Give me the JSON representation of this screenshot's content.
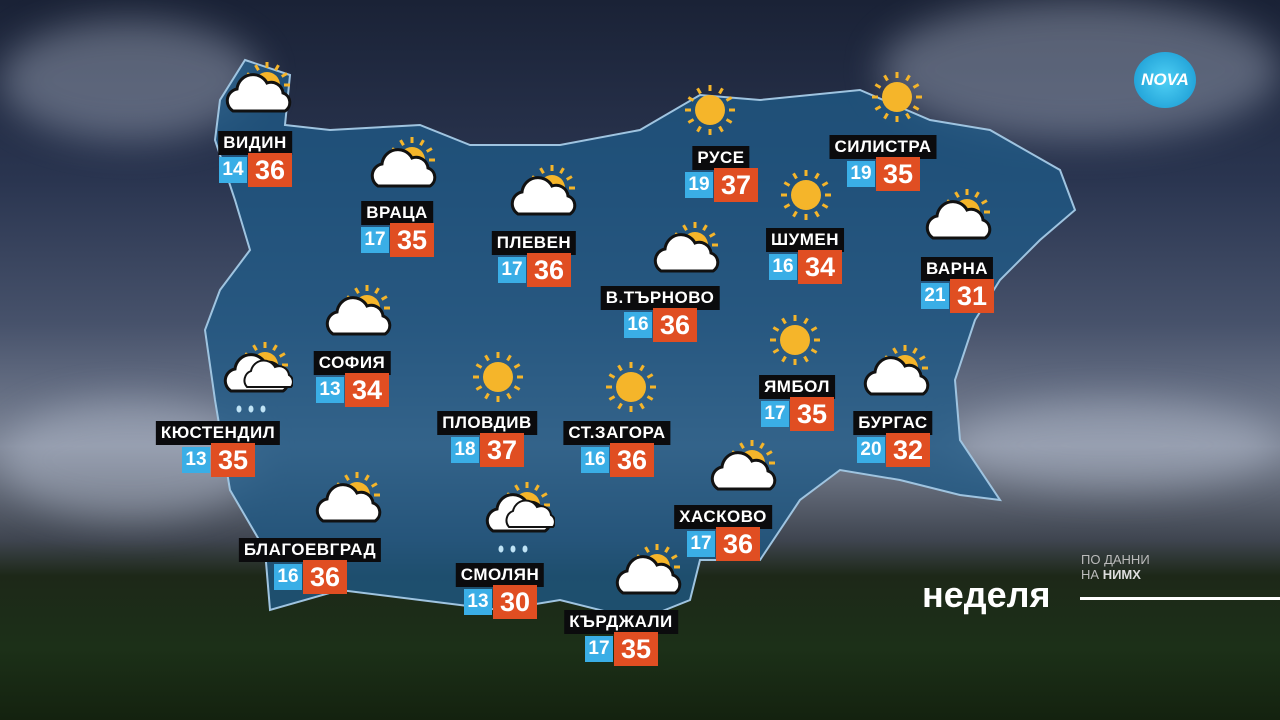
{
  "logo": "NOVA",
  "day": "неделя",
  "source": {
    "line1": "ПО ДАННИ",
    "line2_prefix": "НА",
    "line2_bold": "НИМХ"
  },
  "colors": {
    "min_temp_bg": "#3aaee6",
    "max_temp_bg": "#e04e22",
    "label_bg": "#0b0b0d",
    "map_fill": "#1f5a86"
  },
  "cities": [
    {
      "name": "ВИДИН",
      "min": "14",
      "max": "36",
      "icon": "partly-cloudy-icon"
    },
    {
      "name": "ВРАЦА",
      "min": "17",
      "max": "35",
      "icon": "partly-cloudy-icon"
    },
    {
      "name": "ПЛЕВЕН",
      "min": "17",
      "max": "36",
      "icon": "partly-cloudy-icon"
    },
    {
      "name": "РУСЕ",
      "min": "19",
      "max": "37",
      "icon": "sun-icon"
    },
    {
      "name": "СИЛИСТРА",
      "min": "19",
      "max": "35",
      "icon": "sun-icon"
    },
    {
      "name": "ШУМЕН",
      "min": "16",
      "max": "34",
      "icon": "sun-icon"
    },
    {
      "name": "ВАРНА",
      "min": "21",
      "max": "31",
      "icon": "partly-cloudy-icon"
    },
    {
      "name": "В.ТЪРНОВО",
      "min": "16",
      "max": "36",
      "icon": "partly-cloudy-icon"
    },
    {
      "name": "СОФИЯ",
      "min": "13",
      "max": "34",
      "icon": "partly-cloudy-icon"
    },
    {
      "name": "КЮСТЕНДИЛ",
      "min": "13",
      "max": "35",
      "icon": "partly-cloudy-rain-icon"
    },
    {
      "name": "ПЛОВДИВ",
      "min": "18",
      "max": "37",
      "icon": "sun-icon"
    },
    {
      "name": "СТ.ЗАГОРА",
      "min": "16",
      "max": "36",
      "icon": "sun-icon"
    },
    {
      "name": "ЯМБОЛ",
      "min": "17",
      "max": "35",
      "icon": "sun-icon"
    },
    {
      "name": "БУРГАС",
      "min": "20",
      "max": "32",
      "icon": "partly-cloudy-icon"
    },
    {
      "name": "ХАСКОВО",
      "min": "17",
      "max": "36",
      "icon": "partly-cloudy-icon"
    },
    {
      "name": "БЛАГОЕВГРАД",
      "min": "16",
      "max": "36",
      "icon": "partly-cloudy-icon"
    },
    {
      "name": "СМОЛЯН",
      "min": "13",
      "max": "30",
      "icon": "partly-cloudy-rain-icon"
    },
    {
      "name": "КЪРДЖАЛИ",
      "min": "17",
      "max": "35",
      "icon": "partly-cloudy-icon"
    }
  ]
}
